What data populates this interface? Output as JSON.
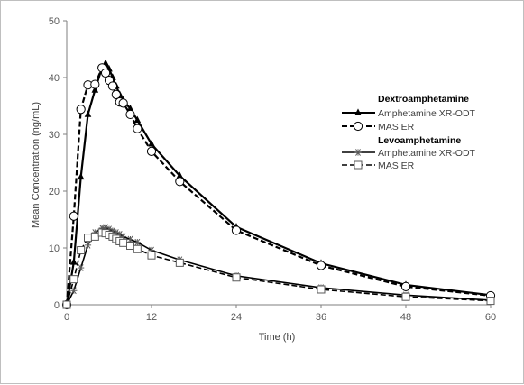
{
  "chart_data": {
    "type": "line",
    "xlabel": "Time (h)",
    "ylabel": "Mean Concentration (ng/mL)",
    "xlim": [
      0,
      60
    ],
    "ylim": [
      0,
      50
    ],
    "xticks": [
      0,
      12,
      24,
      36,
      48,
      60
    ],
    "yticks": [
      0,
      10,
      20,
      30,
      40,
      50
    ],
    "grid": false,
    "legend_position": "right",
    "legend_groups": [
      {
        "heading": "Dextroamphetamine",
        "entries": [
          "Amphetamine XR-ODT",
          "MAS ER"
        ]
      },
      {
        "heading": "Levoamphetamine",
        "entries": [
          "Amphetamine XR-ODT",
          "MAS ER"
        ]
      }
    ],
    "series": [
      {
        "group": "Dextroamphetamine",
        "name": "Amphetamine XR-ODT",
        "line": "solid",
        "marker": "triangle",
        "x": [
          0,
          1,
          2,
          3,
          4,
          5,
          5.5,
          6,
          6.5,
          7,
          7.5,
          8,
          9,
          10,
          12,
          16,
          24,
          36,
          48,
          60
        ],
        "y": [
          0,
          7.5,
          22.5,
          33.5,
          37.8,
          41.8,
          42.5,
          41.5,
          40.0,
          38.5,
          37.0,
          36.0,
          34.5,
          32.5,
          28.3,
          22.7,
          13.7,
          7.3,
          3.5,
          1.7
        ]
      },
      {
        "group": "Dextroamphetamine",
        "name": "MAS ER",
        "line": "dashed",
        "marker": "circle",
        "x": [
          0,
          1,
          2,
          3,
          4,
          5,
          5.5,
          6,
          6.5,
          7,
          7.5,
          8,
          9,
          10,
          12,
          16,
          24,
          36,
          48,
          60
        ],
        "y": [
          0,
          15.6,
          34.4,
          38.7,
          38.8,
          41.7,
          40.8,
          39.5,
          38.5,
          37.0,
          35.7,
          35.5,
          33.5,
          31.0,
          27.0,
          21.7,
          13.1,
          6.9,
          3.2,
          1.6
        ]
      },
      {
        "group": "Levoamphetamine",
        "name": "Amphetamine XR-ODT",
        "line": "solid",
        "marker": "asterisk",
        "x": [
          0,
          1,
          2,
          3,
          4,
          5,
          5.5,
          6,
          6.5,
          7,
          7.5,
          8,
          9,
          10,
          12,
          16,
          24,
          36,
          48,
          60
        ],
        "y": [
          0,
          2.5,
          6.5,
          10.5,
          12.7,
          13.5,
          13.6,
          13.3,
          13.0,
          12.7,
          12.4,
          12.0,
          11.5,
          11.0,
          9.6,
          7.9,
          5.1,
          3.0,
          1.7,
          0.8
        ]
      },
      {
        "group": "Levoamphetamine",
        "name": "MAS ER",
        "line": "dashed",
        "marker": "square",
        "x": [
          0,
          1,
          2,
          3,
          4,
          5,
          5.5,
          6,
          6.5,
          7,
          7.5,
          8,
          9,
          10,
          12,
          16,
          24,
          36,
          48,
          60
        ],
        "y": [
          0,
          4.5,
          9.6,
          11.8,
          12.0,
          12.7,
          12.6,
          12.3,
          12.0,
          11.6,
          11.2,
          10.9,
          10.4,
          9.8,
          8.7,
          7.4,
          4.8,
          2.7,
          1.4,
          0.7
        ]
      }
    ]
  }
}
